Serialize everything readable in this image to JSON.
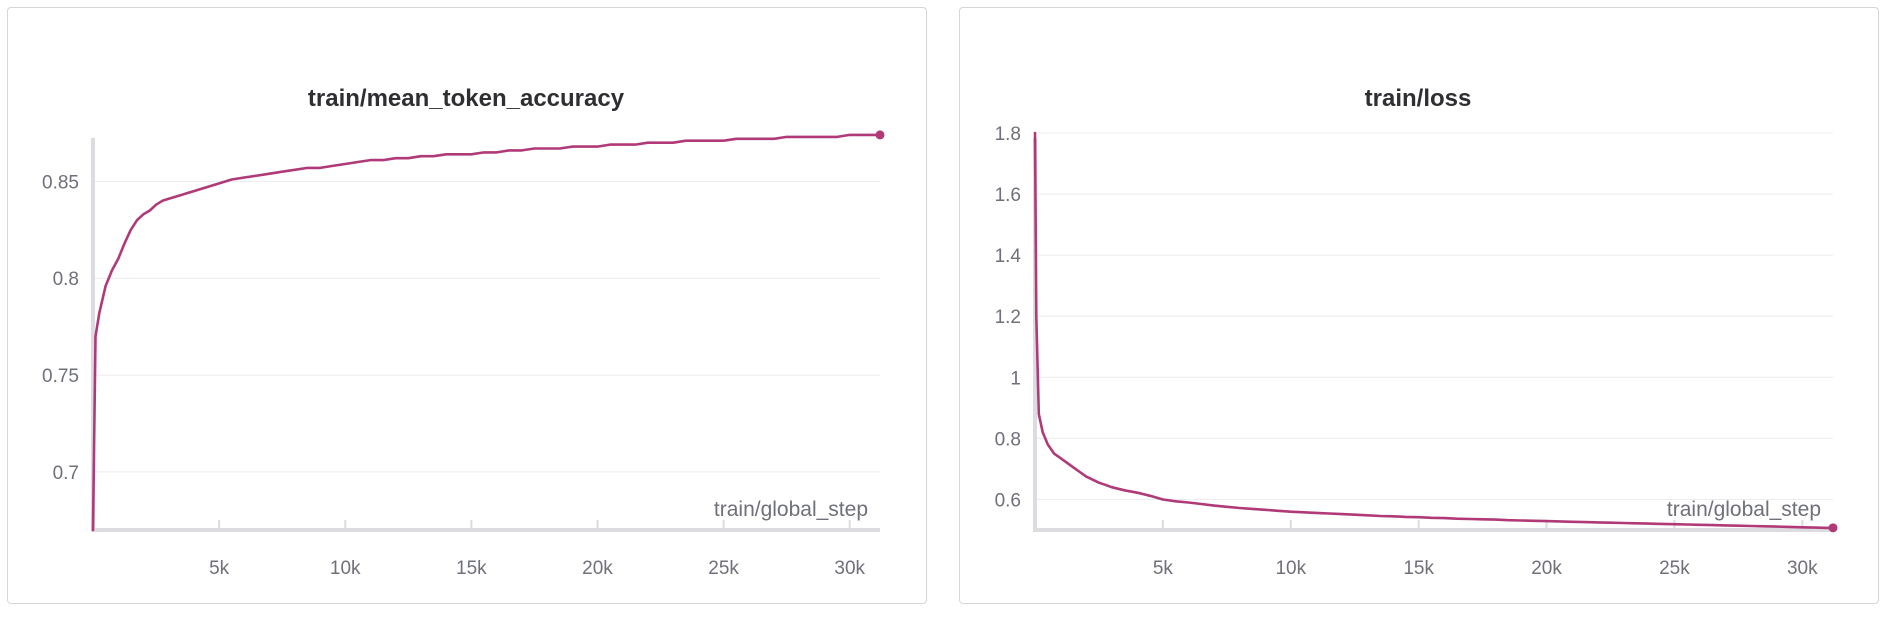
{
  "chart_data": [
    {
      "type": "line",
      "title": "train/mean_token_accuracy",
      "xlabel": "train/global_step",
      "ylabel": "",
      "xlim": [
        0,
        31200
      ],
      "ylim": [
        0.67,
        0.875
      ],
      "xticks": [
        5000,
        10000,
        15000,
        20000,
        25000,
        30000
      ],
      "xtick_labels": [
        "5k",
        "10k",
        "15k",
        "20k",
        "25k",
        "30k"
      ],
      "yticks": [
        0.7,
        0.75,
        0.8,
        0.85
      ],
      "ytick_labels": [
        "0.7",
        "0.75",
        "0.8",
        "0.85"
      ],
      "grid": true,
      "legend": "none",
      "color": "#b03a78",
      "series": [
        {
          "x": [
            0,
            100,
            250,
            500,
            750,
            1000,
            1250,
            1500,
            1750,
            2000,
            2250,
            2500,
            2750,
            3000,
            3250,
            3500,
            3750,
            4000,
            4500,
            5000,
            5500,
            6000,
            6500,
            7000,
            7500,
            8000,
            8500,
            9000,
            9500,
            10000,
            10500,
            11000,
            11500,
            12000,
            12500,
            13000,
            13500,
            14000,
            14500,
            15000,
            15500,
            16000,
            16500,
            17000,
            17500,
            18000,
            18500,
            19000,
            19500,
            20000,
            20500,
            21000,
            21500,
            22000,
            22500,
            23000,
            23500,
            24000,
            24500,
            25000,
            25500,
            26000,
            26500,
            27000,
            27500,
            28000,
            28500,
            29000,
            29500,
            30000,
            30500,
            31000,
            31200
          ],
          "y": [
            0.67,
            0.77,
            0.782,
            0.796,
            0.804,
            0.81,
            0.818,
            0.825,
            0.83,
            0.833,
            0.835,
            0.838,
            0.84,
            0.841,
            0.842,
            0.843,
            0.844,
            0.845,
            0.847,
            0.849,
            0.851,
            0.852,
            0.853,
            0.854,
            0.855,
            0.856,
            0.857,
            0.857,
            0.858,
            0.859,
            0.86,
            0.861,
            0.861,
            0.862,
            0.862,
            0.863,
            0.863,
            0.864,
            0.864,
            0.864,
            0.865,
            0.865,
            0.866,
            0.866,
            0.867,
            0.867,
            0.867,
            0.868,
            0.868,
            0.868,
            0.869,
            0.869,
            0.869,
            0.87,
            0.87,
            0.87,
            0.871,
            0.871,
            0.871,
            0.871,
            0.872,
            0.872,
            0.872,
            0.872,
            0.873,
            0.873,
            0.873,
            0.873,
            0.873,
            0.874,
            0.874,
            0.874,
            0.874
          ]
        }
      ]
    },
    {
      "type": "line",
      "title": "train/loss",
      "xlabel": "train/global_step",
      "ylabel": "",
      "xlim": [
        0,
        31200
      ],
      "ylim": [
        0.5,
        1.8
      ],
      "xticks": [
        5000,
        10000,
        15000,
        20000,
        25000,
        30000
      ],
      "xtick_labels": [
        "5k",
        "10k",
        "15k",
        "20k",
        "25k",
        "30k"
      ],
      "yticks": [
        0.6,
        0.8,
        1.0,
        1.2,
        1.4,
        1.6,
        1.8
      ],
      "ytick_labels": [
        "0.6",
        "0.8",
        "1",
        "1.2",
        "1.4",
        "1.6",
        "1.8"
      ],
      "grid": true,
      "legend": "none",
      "color": "#b03a78",
      "series": [
        {
          "x": [
            0,
            50,
            150,
            300,
            500,
            750,
            1000,
            1250,
            1500,
            1750,
            2000,
            2250,
            2500,
            2750,
            3000,
            3500,
            4000,
            4500,
            5000,
            5500,
            6000,
            6500,
            7000,
            7500,
            8000,
            8500,
            9000,
            9500,
            10000,
            10500,
            11000,
            11500,
            12000,
            12500,
            13000,
            13500,
            14000,
            14500,
            15000,
            15500,
            16000,
            16500,
            17000,
            17500,
            18000,
            18500,
            19000,
            19500,
            20000,
            20500,
            21000,
            21500,
            22000,
            22500,
            23000,
            23500,
            24000,
            24500,
            25000,
            25500,
            26000,
            26500,
            27000,
            27500,
            28000,
            28500,
            29000,
            29500,
            30000,
            30500,
            31000,
            31200
          ],
          "y": [
            1.8,
            1.2,
            0.88,
            0.82,
            0.78,
            0.75,
            0.735,
            0.72,
            0.705,
            0.69,
            0.675,
            0.665,
            0.655,
            0.648,
            0.64,
            0.63,
            0.622,
            0.612,
            0.6,
            0.594,
            0.59,
            0.585,
            0.58,
            0.576,
            0.572,
            0.569,
            0.566,
            0.563,
            0.56,
            0.558,
            0.556,
            0.554,
            0.552,
            0.55,
            0.548,
            0.546,
            0.545,
            0.543,
            0.542,
            0.54,
            0.539,
            0.537,
            0.536,
            0.535,
            0.534,
            0.532,
            0.531,
            0.53,
            0.529,
            0.528,
            0.527,
            0.526,
            0.525,
            0.524,
            0.523,
            0.522,
            0.521,
            0.52,
            0.519,
            0.518,
            0.517,
            0.516,
            0.515,
            0.514,
            0.513,
            0.512,
            0.511,
            0.51,
            0.509,
            0.508,
            0.507,
            0.507
          ]
        }
      ]
    }
  ]
}
